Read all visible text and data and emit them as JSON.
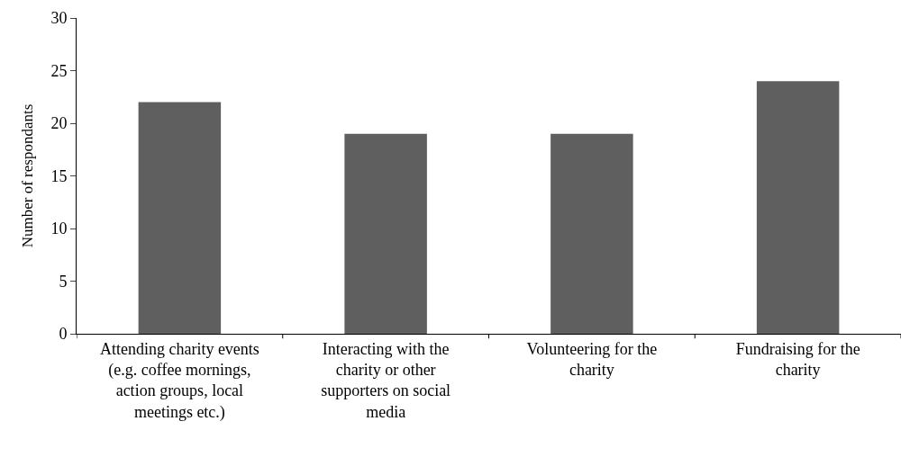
{
  "chart_data": {
    "type": "bar",
    "ylabel": "Number of respondants",
    "categories": [
      "Attending charity events (e.g. coffee mornings, action groups, local meetings etc.)",
      "Interacting with the charity or other supporters on social media",
      "Volunteering for the charity",
      "Fundraising for the charity"
    ],
    "values": [
      22,
      19,
      19,
      24
    ],
    "color": "#5f5f5f",
    "ylim": [
      0,
      30
    ],
    "yticks": [
      0,
      5,
      10,
      15,
      20,
      25,
      30
    ]
  }
}
